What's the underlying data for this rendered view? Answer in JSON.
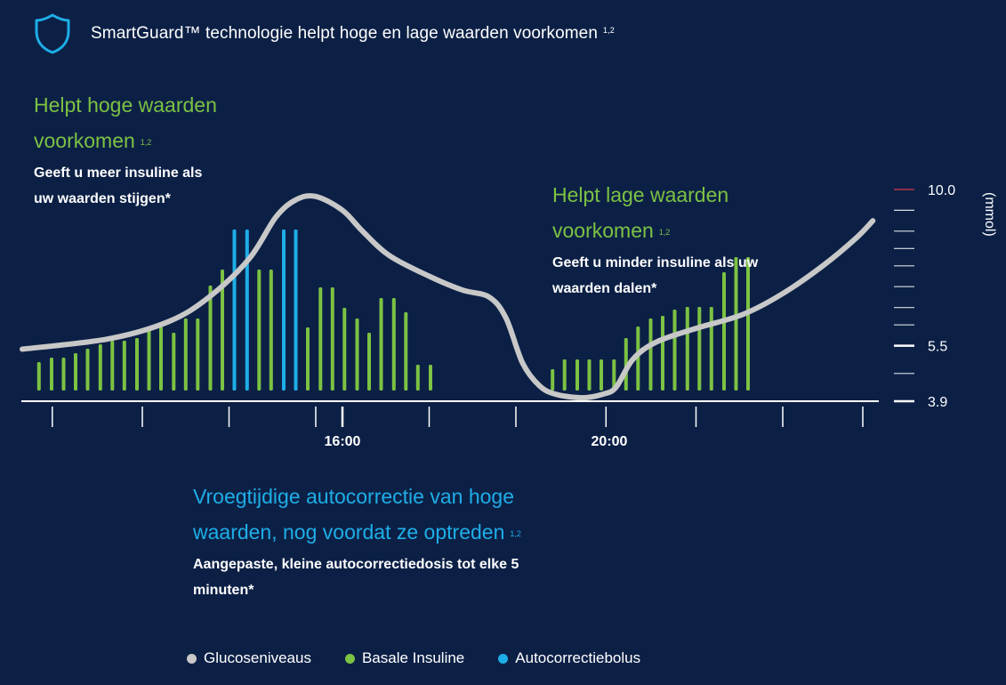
{
  "header": {
    "title": "SmartGuard™ technologie helpt hoge en lage waarden voorkomen",
    "ref": "1,2",
    "icon": "shield-icon"
  },
  "callouts": {
    "high": {
      "title_line1": "Helpt hoge waarden",
      "title_line2": "voorkomen",
      "ref": "1,2",
      "body_line1": "Geeft u meer insuline als",
      "body_line2": "uw waarden stijgen*"
    },
    "low": {
      "title_line1": "Helpt lage waarden",
      "title_line2": "voorkomen",
      "ref": "1,2",
      "body_line1": "Geeft u minder insuline als uw",
      "body_line2": "waarden dalen*"
    },
    "autocorrection": {
      "title_line1": "Vroegtijdige autocorrectie van hoge",
      "title_line2": "waarden, nog voordat ze optreden",
      "ref": "1,2",
      "body_line1": "Aangepaste, kleine autocorrectiedosis tot elke 5",
      "body_line2": "minuten*"
    }
  },
  "legend": [
    {
      "label": "Glucoseniveaus",
      "color": "#c8c8c8"
    },
    {
      "label": "Basale Insuline",
      "color": "#7cc243"
    },
    {
      "label": "Autocorrectiebolus",
      "color": "#1eaee7"
    }
  ],
  "colors": {
    "background": "#0c2046",
    "glucose": "#c8c8c8",
    "basal": "#7cc243",
    "bolus": "#1eaee7",
    "axis": "#ffffff",
    "target_tick": "#c0334d"
  },
  "chart_data": {
    "type": "bar+line",
    "title": "SmartGuard™ technologie helpt hoge en lage waarden voorkomen",
    "y_unit_label": "(mmol)",
    "y_scale_labels": [
      "10.0",
      "5.5",
      "3.9"
    ],
    "y_scale_values": [
      10.0,
      5.5,
      3.9
    ],
    "y_minor_ticks": [
      4.7,
      6.1,
      6.6,
      7.2,
      7.8,
      8.3,
      8.8,
      9.4,
      10.0
    ],
    "x_tick_labels": [
      {
        "label": "16:00",
        "hour": 16.0
      },
      {
        "label": "20:00",
        "hour": 20.0
      }
    ],
    "x_ticks_hours": [
      11.65,
      13.0,
      14.3,
      15.6,
      16.0,
      17.3,
      18.6,
      19.95,
      21.3,
      22.6,
      23.8
    ],
    "x_range_hours": [
      11.2,
      24.0
    ],
    "glucose_curve": [
      {
        "hour": 11.2,
        "mmol": 5.4
      },
      {
        "hour": 12.5,
        "mmol": 5.7
      },
      {
        "hour": 13.4,
        "mmol": 6.2
      },
      {
        "hour": 14.0,
        "mmol": 6.9
      },
      {
        "hour": 14.6,
        "mmol": 8.0
      },
      {
        "hour": 15.0,
        "mmol": 9.2
      },
      {
        "hour": 15.3,
        "mmol": 9.7
      },
      {
        "hour": 15.6,
        "mmol": 9.8
      },
      {
        "hour": 16.0,
        "mmol": 9.4
      },
      {
        "hour": 16.3,
        "mmol": 8.8
      },
      {
        "hour": 16.7,
        "mmol": 8.1
      },
      {
        "hour": 17.3,
        "mmol": 7.5
      },
      {
        "hour": 17.8,
        "mmol": 7.1
      },
      {
        "hour": 18.2,
        "mmol": 6.9
      },
      {
        "hour": 18.45,
        "mmol": 6.3
      },
      {
        "hour": 18.7,
        "mmol": 5.0
      },
      {
        "hour": 18.95,
        "mmol": 4.35
      },
      {
        "hour": 19.2,
        "mmol": 4.1
      },
      {
        "hour": 19.6,
        "mmol": 4.0
      },
      {
        "hour": 19.9,
        "mmol": 4.1
      },
      {
        "hour": 20.1,
        "mmol": 4.3
      },
      {
        "hour": 20.35,
        "mmol": 5.1
      },
      {
        "hour": 20.7,
        "mmol": 5.6
      },
      {
        "hour": 21.3,
        "mmol": 6.0
      },
      {
        "hour": 22.0,
        "mmol": 6.4
      },
      {
        "hour": 22.6,
        "mmol": 7.0
      },
      {
        "hour": 23.2,
        "mmol": 7.8
      },
      {
        "hour": 23.7,
        "mmol": 8.6
      },
      {
        "hour": 23.95,
        "mmol": 9.1
      }
    ],
    "insulin_bars": [
      {
        "hour": 11.45,
        "dose": 0.32,
        "type": "basal"
      },
      {
        "hour": 11.64,
        "dose": 0.37,
        "type": "basal"
      },
      {
        "hour": 11.82,
        "dose": 0.37,
        "type": "basal"
      },
      {
        "hour": 12.0,
        "dose": 0.42,
        "type": "basal"
      },
      {
        "hour": 12.18,
        "dose": 0.47,
        "type": "basal"
      },
      {
        "hour": 12.37,
        "dose": 0.52,
        "type": "basal"
      },
      {
        "hour": 12.55,
        "dose": 0.56,
        "type": "basal"
      },
      {
        "hour": 12.73,
        "dose": 0.56,
        "type": "basal"
      },
      {
        "hour": 12.92,
        "dose": 0.59,
        "type": "basal"
      },
      {
        "hour": 13.1,
        "dose": 0.72,
        "type": "basal"
      },
      {
        "hour": 13.28,
        "dose": 0.72,
        "type": "basal"
      },
      {
        "hour": 13.47,
        "dose": 0.65,
        "type": "basal"
      },
      {
        "hour": 13.65,
        "dose": 0.81,
        "type": "basal"
      },
      {
        "hour": 13.83,
        "dose": 0.81,
        "type": "basal"
      },
      {
        "hour": 14.02,
        "dose": 1.18,
        "type": "basal"
      },
      {
        "hour": 14.2,
        "dose": 1.36,
        "type": "basal"
      },
      {
        "hour": 14.38,
        "dose": 1.81,
        "type": "bolus"
      },
      {
        "hour": 14.57,
        "dose": 1.81,
        "type": "bolus"
      },
      {
        "hour": 14.75,
        "dose": 1.36,
        "type": "basal"
      },
      {
        "hour": 14.93,
        "dose": 1.36,
        "type": "basal"
      },
      {
        "hour": 15.12,
        "dose": 1.81,
        "type": "bolus"
      },
      {
        "hour": 15.3,
        "dose": 1.81,
        "type": "bolus"
      },
      {
        "hour": 15.48,
        "dose": 0.71,
        "type": "basal"
      },
      {
        "hour": 15.67,
        "dose": 1.16,
        "type": "basal"
      },
      {
        "hour": 15.85,
        "dose": 1.16,
        "type": "basal"
      },
      {
        "hour": 16.03,
        "dose": 0.93,
        "type": "basal"
      },
      {
        "hour": 16.22,
        "dose": 0.81,
        "type": "basal"
      },
      {
        "hour": 16.4,
        "dose": 0.65,
        "type": "basal"
      },
      {
        "hour": 16.58,
        "dose": 1.04,
        "type": "basal"
      },
      {
        "hour": 16.77,
        "dose": 1.04,
        "type": "basal"
      },
      {
        "hour": 16.95,
        "dose": 0.88,
        "type": "basal"
      },
      {
        "hour": 17.13,
        "dose": 0.29,
        "type": "basal"
      },
      {
        "hour": 17.32,
        "dose": 0.29,
        "type": "basal"
      },
      {
        "hour": 19.15,
        "dose": 0.24,
        "type": "basal"
      },
      {
        "hour": 19.33,
        "dose": 0.35,
        "type": "basal"
      },
      {
        "hour": 19.52,
        "dose": 0.35,
        "type": "basal"
      },
      {
        "hour": 19.7,
        "dose": 0.35,
        "type": "basal"
      },
      {
        "hour": 19.88,
        "dose": 0.35,
        "type": "basal"
      },
      {
        "hour": 20.07,
        "dose": 0.35,
        "type": "basal"
      },
      {
        "hour": 20.25,
        "dose": 0.59,
        "type": "basal"
      },
      {
        "hour": 20.43,
        "dose": 0.72,
        "type": "basal"
      },
      {
        "hour": 20.62,
        "dose": 0.81,
        "type": "basal"
      },
      {
        "hour": 20.8,
        "dose": 0.84,
        "type": "basal"
      },
      {
        "hour": 20.98,
        "dose": 0.91,
        "type": "basal"
      },
      {
        "hour": 21.17,
        "dose": 0.94,
        "type": "basal"
      },
      {
        "hour": 21.35,
        "dose": 0.94,
        "type": "basal"
      },
      {
        "hour": 21.53,
        "dose": 0.94,
        "type": "basal"
      },
      {
        "hour": 21.72,
        "dose": 1.33,
        "type": "basal"
      },
      {
        "hour": 21.9,
        "dose": 1.5,
        "type": "basal"
      },
      {
        "hour": 22.08,
        "dose": 1.5,
        "type": "basal"
      }
    ]
  }
}
